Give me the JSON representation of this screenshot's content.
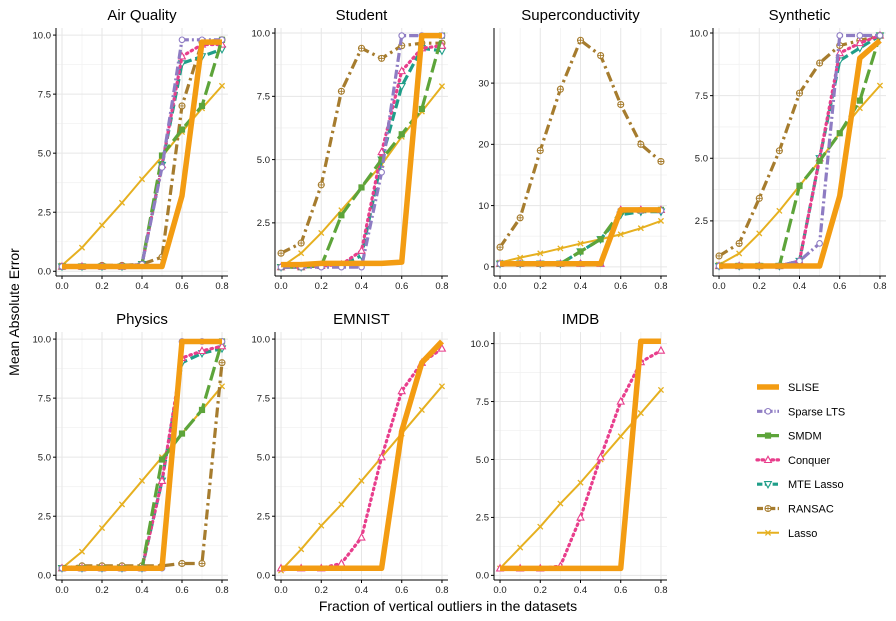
{
  "figure": {
    "ylabel": "Mean Absolute Error",
    "xlabel": "Fraction of vertical outliers in the datasets"
  },
  "legend": {
    "placement": "bottom-right",
    "items": [
      {
        "method": "SLISE",
        "color": "#F39C12",
        "style": "solid-thick",
        "marker": "none"
      },
      {
        "method": "Sparse LTS",
        "color": "#8E7CC3",
        "style": "dot-dash",
        "marker": "circle"
      },
      {
        "method": "SMDM",
        "color": "#5DA43A",
        "style": "long-dash",
        "marker": "square"
      },
      {
        "method": "Conquer",
        "color": "#E83E8C",
        "style": "dotted",
        "marker": "triangle-up"
      },
      {
        "method": "MTE Lasso",
        "color": "#1F9E89",
        "style": "dash",
        "marker": "triangle-down"
      },
      {
        "method": "RANSAC",
        "color": "#A67C2E",
        "style": "dash-dot",
        "marker": "circle-plus"
      },
      {
        "method": "Lasso",
        "color": "#E6B020",
        "style": "solid",
        "marker": "x"
      }
    ]
  },
  "chart_data": [
    {
      "type": "line",
      "title": "Air Quality",
      "x": [
        0,
        0.1,
        0.2,
        0.3,
        0.4,
        0.5,
        0.6,
        0.7,
        0.8
      ],
      "xlim": [
        -0.03,
        0.83
      ],
      "ylim": [
        -0.2,
        10.3
      ],
      "xticks": [
        "0.0",
        "0.2",
        "0.4",
        "0.6",
        "0.8"
      ],
      "yticks": [
        "0.0",
        "2.5",
        "5.0",
        "7.5",
        "10.0"
      ],
      "series": [
        {
          "name": "Lasso",
          "values": [
            0.25,
            1.0,
            1.95,
            2.9,
            3.9,
            4.85,
            5.9,
            6.9,
            7.85
          ]
        },
        {
          "name": "RANSAC",
          "values": [
            0.2,
            0.2,
            0.25,
            0.25,
            0.3,
            0.6,
            7.0,
            9.7,
            9.8
          ]
        },
        {
          "name": "MTE Lasso",
          "values": [
            0.2,
            0.2,
            0.2,
            0.2,
            0.3,
            4.5,
            8.8,
            9.1,
            9.4
          ]
        },
        {
          "name": "Conquer",
          "values": [
            0.2,
            0.2,
            0.2,
            0.2,
            0.3,
            4.5,
            9.1,
            9.6,
            9.6
          ]
        },
        {
          "name": "SMDM",
          "values": [
            0.2,
            0.2,
            0.2,
            0.2,
            0.3,
            4.9,
            6.0,
            7.0,
            9.8
          ]
        },
        {
          "name": "Sparse LTS",
          "values": [
            0.2,
            0.2,
            0.2,
            0.2,
            0.3,
            4.4,
            9.8,
            9.8,
            9.8
          ]
        },
        {
          "name": "SLISE",
          "values": [
            0.2,
            0.2,
            0.2,
            0.2,
            0.2,
            0.2,
            3.2,
            9.7,
            9.7
          ]
        }
      ]
    },
    {
      "type": "line",
      "title": "Student",
      "x": [
        0,
        0.1,
        0.2,
        0.3,
        0.4,
        0.5,
        0.6,
        0.7,
        0.8
      ],
      "xlim": [
        -0.03,
        0.83
      ],
      "ylim": [
        0.4,
        10.2
      ],
      "xticks": [
        "0.0",
        "0.2",
        "0.4",
        "0.6",
        "0.8"
      ],
      "yticks": [
        "2.5",
        "5.0",
        "7.5",
        "10.0"
      ],
      "series": [
        {
          "name": "Lasso",
          "values": [
            0.75,
            1.3,
            2.1,
            3.0,
            3.9,
            4.8,
            5.9,
            6.9,
            7.9
          ]
        },
        {
          "name": "RANSAC",
          "values": [
            1.3,
            1.7,
            4.0,
            7.7,
            9.4,
            9.0,
            9.5,
            9.6,
            9.6
          ]
        },
        {
          "name": "MTE Lasso",
          "values": [
            0.75,
            0.75,
            0.8,
            0.85,
            1.2,
            5.0,
            7.9,
            9.4,
            9.3
          ]
        },
        {
          "name": "Conquer",
          "values": [
            0.75,
            0.75,
            0.8,
            0.85,
            1.4,
            5.3,
            8.5,
            9.4,
            9.5
          ]
        },
        {
          "name": "SMDM",
          "values": [
            0.75,
            0.75,
            0.8,
            2.8,
            3.9,
            5.0,
            6.0,
            7.0,
            9.9
          ]
        },
        {
          "name": "Sparse LTS",
          "values": [
            0.75,
            0.75,
            0.75,
            0.75,
            0.75,
            4.5,
            9.9,
            9.9,
            9.9
          ]
        },
        {
          "name": "SLISE",
          "values": [
            0.85,
            0.85,
            0.9,
            0.9,
            0.9,
            0.9,
            0.95,
            9.9,
            9.9
          ]
        }
      ]
    },
    {
      "type": "line",
      "title": "Superconductivity",
      "x": [
        0,
        0.1,
        0.2,
        0.3,
        0.4,
        0.5,
        0.6,
        0.7,
        0.8
      ],
      "xlim": [
        -0.03,
        0.83
      ],
      "ylim": [
        -1.5,
        39
      ],
      "xticks": [
        "0.0",
        "0.2",
        "0.4",
        "0.6",
        "0.8"
      ],
      "yticks": [
        "0",
        "10",
        "20",
        "30"
      ],
      "series": [
        {
          "name": "Lasso",
          "values": [
            0.7,
            1.5,
            2.2,
            3.0,
            3.8,
            4.5,
            5.3,
            6.3,
            7.5
          ]
        },
        {
          "name": "RANSAC",
          "values": [
            3.2,
            8.0,
            19.0,
            29.0,
            37.0,
            34.5,
            26.5,
            20.0,
            17.2
          ]
        },
        {
          "name": "MTE Lasso",
          "values": [
            0.5,
            0.5,
            0.5,
            0.5,
            2.5,
            4.5,
            8.5,
            9.0,
            9.0
          ]
        },
        {
          "name": "Conquer",
          "values": [
            0.5,
            0.5,
            0.5,
            0.5,
            0.5,
            0.5,
            9.3,
            9.3,
            9.3
          ]
        },
        {
          "name": "SMDM",
          "values": [
            0.5,
            0.5,
            0.5,
            0.5,
            2.5,
            4.5,
            9.0,
            9.2,
            9.3
          ]
        },
        {
          "name": "Sparse LTS",
          "values": [
            0.5,
            0.5,
            0.5,
            0.5,
            0.5,
            0.5,
            9.2,
            9.2,
            9.2
          ]
        },
        {
          "name": "SLISE",
          "values": [
            0.5,
            0.5,
            0.5,
            0.5,
            0.5,
            0.5,
            9.3,
            9.3,
            9.3
          ]
        }
      ]
    },
    {
      "type": "line",
      "title": "Synthetic",
      "x": [
        0,
        0.1,
        0.2,
        0.3,
        0.4,
        0.5,
        0.6,
        0.7,
        0.8
      ],
      "xlim": [
        -0.03,
        0.83
      ],
      "ylim": [
        0.3,
        10.2
      ],
      "xticks": [
        "0.0",
        "0.2",
        "0.4",
        "0.6",
        "0.8"
      ],
      "yticks": [
        "2.5",
        "5.0",
        "7.5",
        "10.0"
      ],
      "series": [
        {
          "name": "Lasso",
          "values": [
            0.75,
            1.2,
            2.0,
            2.9,
            3.9,
            4.9,
            6.0,
            7.0,
            7.9
          ]
        },
        {
          "name": "RANSAC",
          "values": [
            1.1,
            1.6,
            3.4,
            5.3,
            7.6,
            8.8,
            9.5,
            9.7,
            9.9
          ]
        },
        {
          "name": "MTE Lasso",
          "values": [
            0.7,
            0.7,
            0.7,
            0.7,
            0.9,
            5.0,
            8.9,
            9.4,
            9.9
          ]
        },
        {
          "name": "Conquer",
          "values": [
            0.7,
            0.7,
            0.7,
            0.7,
            0.9,
            5.0,
            9.2,
            9.6,
            9.9
          ]
        },
        {
          "name": "SMDM",
          "values": [
            0.7,
            0.7,
            0.7,
            0.7,
            3.9,
            4.9,
            6.0,
            7.3,
            9.9
          ]
        },
        {
          "name": "Sparse LTS",
          "values": [
            0.7,
            0.7,
            0.7,
            0.7,
            0.9,
            1.6,
            9.9,
            9.9,
            9.9
          ]
        },
        {
          "name": "SLISE",
          "values": [
            0.7,
            0.7,
            0.7,
            0.7,
            0.7,
            0.7,
            3.5,
            9.0,
            9.7
          ]
        }
      ]
    },
    {
      "type": "line",
      "title": "Physics",
      "x": [
        0,
        0.1,
        0.2,
        0.3,
        0.4,
        0.5,
        0.6,
        0.7,
        0.8
      ],
      "xlim": [
        -0.03,
        0.83
      ],
      "ylim": [
        -0.2,
        10.3
      ],
      "xticks": [
        "0.0",
        "0.2",
        "0.4",
        "0.6",
        "0.8"
      ],
      "yticks": [
        "0.0",
        "2.5",
        "5.0",
        "7.5",
        "10.0"
      ],
      "series": [
        {
          "name": "Lasso",
          "values": [
            0.3,
            1.0,
            2.0,
            3.0,
            4.0,
            5.0,
            6.0,
            7.0,
            8.0
          ]
        },
        {
          "name": "RANSAC",
          "values": [
            0.3,
            0.4,
            0.4,
            0.4,
            0.4,
            0.4,
            0.5,
            0.5,
            9.0
          ]
        },
        {
          "name": "MTE Lasso",
          "values": [
            0.3,
            0.3,
            0.3,
            0.3,
            0.3,
            4.0,
            9.0,
            9.4,
            9.6
          ]
        },
        {
          "name": "Conquer",
          "values": [
            0.3,
            0.3,
            0.3,
            0.3,
            0.3,
            4.0,
            9.2,
            9.5,
            9.7
          ]
        },
        {
          "name": "SMDM",
          "values": [
            0.3,
            0.3,
            0.3,
            0.3,
            0.3,
            4.9,
            6.0,
            7.0,
            9.9
          ]
        },
        {
          "name": "Sparse LTS",
          "values": [
            0.3,
            0.3,
            0.3,
            0.3,
            0.3,
            0.3,
            9.9,
            9.9,
            9.9
          ]
        },
        {
          "name": "SLISE",
          "values": [
            0.3,
            0.3,
            0.3,
            0.3,
            0.3,
            0.3,
            9.9,
            9.9,
            9.9
          ]
        }
      ]
    },
    {
      "type": "line",
      "title": "EMNIST",
      "x": [
        0,
        0.1,
        0.2,
        0.3,
        0.4,
        0.5,
        0.6,
        0.7,
        0.8
      ],
      "xlim": [
        -0.03,
        0.83
      ],
      "ylim": [
        -0.2,
        10.3
      ],
      "xticks": [
        "0.0",
        "0.2",
        "0.4",
        "0.6",
        "0.8"
      ],
      "yticks": [
        "0.0",
        "2.5",
        "5.0",
        "7.5",
        "10.0"
      ],
      "series": [
        {
          "name": "Lasso",
          "values": [
            0.2,
            1.1,
            2.1,
            3.0,
            4.0,
            5.0,
            6.0,
            7.0,
            8.0
          ]
        },
        {
          "name": "Conquer",
          "values": [
            0.3,
            0.3,
            0.3,
            0.5,
            1.6,
            5.0,
            7.8,
            9.0,
            9.6
          ]
        },
        {
          "name": "SLISE",
          "values": [
            0.3,
            0.3,
            0.3,
            0.3,
            0.3,
            0.3,
            6.1,
            9.0,
            9.9
          ]
        }
      ]
    },
    {
      "type": "line",
      "title": "IMDB",
      "x": [
        0,
        0.1,
        0.2,
        0.3,
        0.4,
        0.5,
        0.6,
        0.7,
        0.8
      ],
      "xlim": [
        -0.03,
        0.83
      ],
      "ylim": [
        -0.2,
        10.5
      ],
      "xticks": [
        "0.0",
        "0.2",
        "0.4",
        "0.6",
        "0.8"
      ],
      "yticks": [
        "0.0",
        "2.5",
        "5.0",
        "7.5",
        "10.0"
      ],
      "series": [
        {
          "name": "Lasso",
          "values": [
            0.3,
            1.2,
            2.1,
            3.1,
            4.0,
            5.0,
            6.0,
            7.0,
            8.0
          ]
        },
        {
          "name": "Conquer",
          "values": [
            0.3,
            0.3,
            0.3,
            0.4,
            2.5,
            5.1,
            7.5,
            9.2,
            9.7
          ]
        },
        {
          "name": "SLISE",
          "values": [
            0.3,
            0.3,
            0.3,
            0.3,
            0.3,
            0.3,
            0.3,
            10.1,
            10.1
          ]
        }
      ]
    }
  ]
}
